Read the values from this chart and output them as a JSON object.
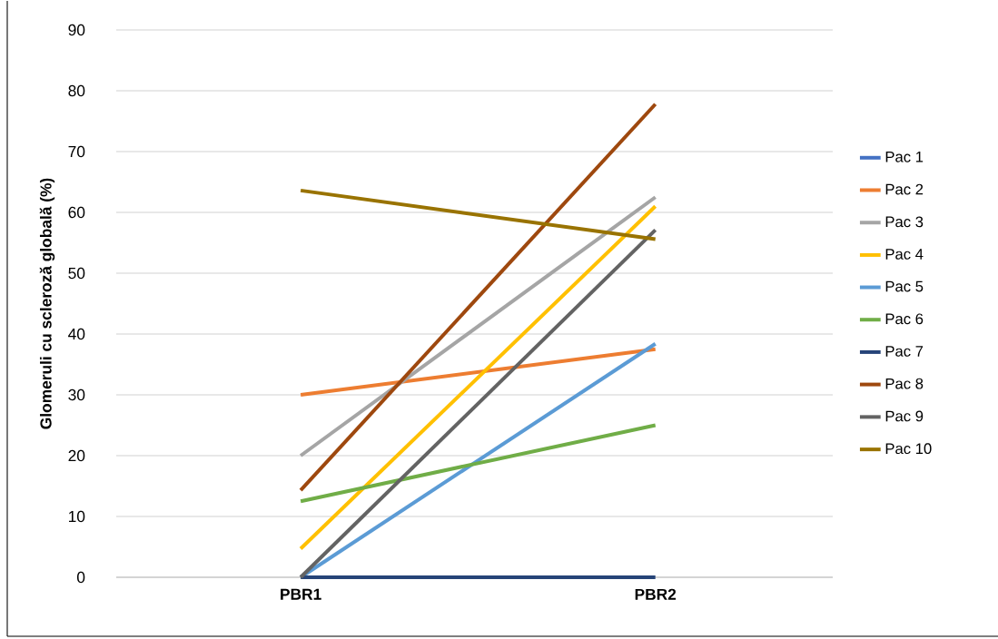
{
  "chart_data": {
    "type": "line",
    "ylabel": "Glomeruli cu scleroză globală (%)",
    "categories": [
      "PBR1",
      "PBR2"
    ],
    "series": [
      {
        "name": "Pac 1",
        "color": "#4472c4",
        "values": [
          null,
          null
        ]
      },
      {
        "name": "Pac 2",
        "color": "#ed7d31",
        "values": [
          30,
          37.5
        ]
      },
      {
        "name": "Pac 3",
        "color": "#a5a5a5",
        "values": [
          20,
          62.5
        ]
      },
      {
        "name": "Pac 4",
        "color": "#ffc000",
        "values": [
          4.7,
          61
        ]
      },
      {
        "name": "Pac 5",
        "color": "#5b9bd5",
        "values": [
          0,
          38.4
        ]
      },
      {
        "name": "Pac 6",
        "color": "#70ad47",
        "values": [
          12.5,
          25
        ]
      },
      {
        "name": "Pac 7",
        "color": "#264478",
        "values": [
          0,
          0
        ]
      },
      {
        "name": "Pac 8",
        "color": "#9e480e",
        "values": [
          14.3,
          77.8
        ]
      },
      {
        "name": "Pac 9",
        "color": "#636363",
        "values": [
          0,
          57.1
        ]
      },
      {
        "name": "Pac 10",
        "color": "#997300",
        "values": [
          63.6,
          55.6
        ]
      }
    ],
    "ylim": [
      0,
      90
    ],
    "yticks": [
      0,
      10,
      20,
      30,
      40,
      50,
      60,
      70,
      80,
      90
    ],
    "grid": "y",
    "legend": "right",
    "marker": "none",
    "line_style": "solid"
  }
}
